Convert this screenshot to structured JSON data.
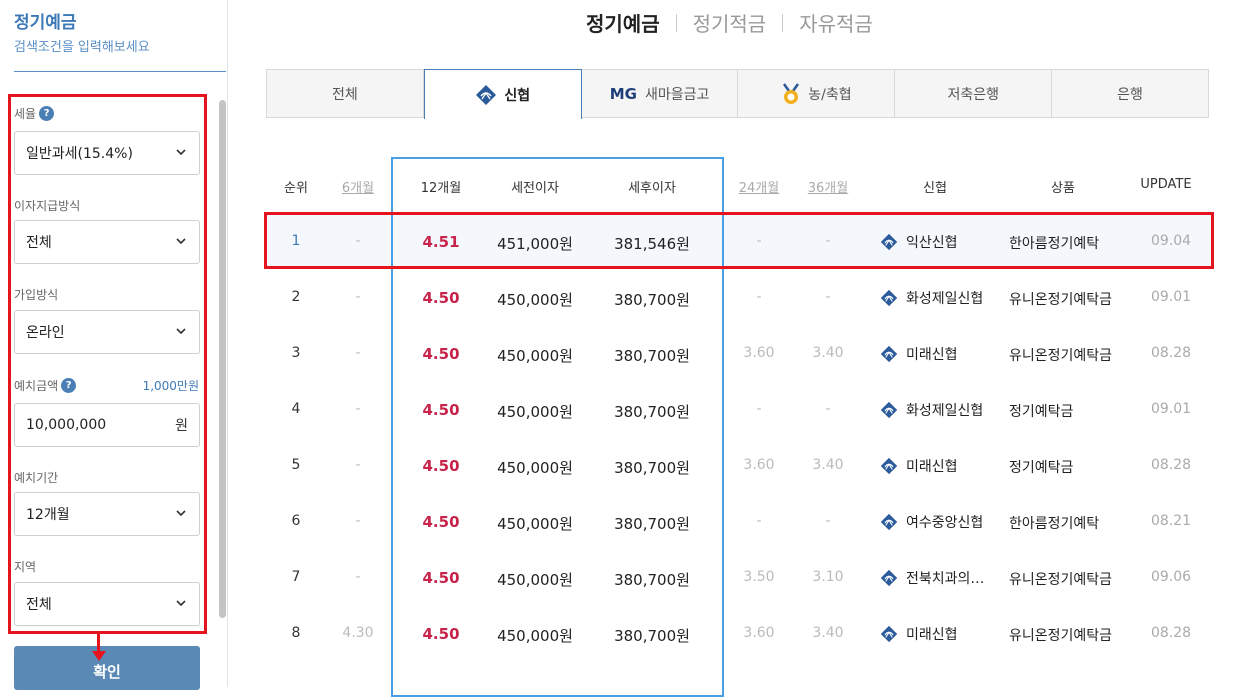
{
  "sidebar": {
    "title": "정기예금",
    "subtitle": "검색조건을 입력해보세요",
    "tax": {
      "label": "세율",
      "value": "일반과세(15.4%)"
    },
    "interest_method": {
      "label": "이자지급방식",
      "value": "전체"
    },
    "join_method": {
      "label": "가입방식",
      "value": "온라인"
    },
    "deposit_amount": {
      "label": "예치금액",
      "hint": "1,000만원",
      "value": "10,000,000",
      "unit": "원"
    },
    "period": {
      "label": "예치기간",
      "value": "12개월"
    },
    "region": {
      "label": "지역",
      "value": "전체"
    },
    "confirm_label": "확인"
  },
  "top_tabs": [
    "정기예금",
    "정기적금",
    "자유적금"
  ],
  "institution_tabs": [
    {
      "label": "전체",
      "icon": ""
    },
    {
      "label": "신협",
      "icon": "shinhyup-logo-icon"
    },
    {
      "label": "새마을금고",
      "icon": "mg-logo-icon",
      "prefix": "MG"
    },
    {
      "label": "농/축협",
      "icon": "nonghyup-logo-icon"
    },
    {
      "label": "저축은행",
      "icon": ""
    },
    {
      "label": "은행",
      "icon": ""
    }
  ],
  "table": {
    "headers": {
      "rank": "순위",
      "m6": "6개월",
      "m12": "12개월",
      "pretax": "세전이자",
      "aftertax": "세후이자",
      "m24": "24개월",
      "m36": "36개월",
      "bank": "신협",
      "product": "상품",
      "update": "UPDATE"
    },
    "rows": [
      {
        "rank": "1",
        "m6": "-",
        "m12": "4.51",
        "pretax": "451,000원",
        "aftertax": "381,546원",
        "m24": "-",
        "m36": "-",
        "bank": "익산신협",
        "product": "한아름정기예탁",
        "update": "09.04"
      },
      {
        "rank": "2",
        "m6": "-",
        "m12": "4.50",
        "pretax": "450,000원",
        "aftertax": "380,700원",
        "m24": "-",
        "m36": "-",
        "bank": "화성제일신협",
        "product": "유니온정기예탁금",
        "update": "09.01"
      },
      {
        "rank": "3",
        "m6": "-",
        "m12": "4.50",
        "pretax": "450,000원",
        "aftertax": "380,700원",
        "m24": "3.60",
        "m36": "3.40",
        "bank": "미래신협",
        "product": "유니온정기예탁금",
        "update": "08.28"
      },
      {
        "rank": "4",
        "m6": "-",
        "m12": "4.50",
        "pretax": "450,000원",
        "aftertax": "380,700원",
        "m24": "-",
        "m36": "-",
        "bank": "화성제일신협",
        "product": "정기예탁금",
        "update": "09.01"
      },
      {
        "rank": "5",
        "m6": "-",
        "m12": "4.50",
        "pretax": "450,000원",
        "aftertax": "380,700원",
        "m24": "3.60",
        "m36": "3.40",
        "bank": "미래신협",
        "product": "정기예탁금",
        "update": "08.28"
      },
      {
        "rank": "6",
        "m6": "-",
        "m12": "4.50",
        "pretax": "450,000원",
        "aftertax": "380,700원",
        "m24": "-",
        "m36": "-",
        "bank": "여수중앙신협",
        "product": "한아름정기예탁",
        "update": "08.21"
      },
      {
        "rank": "7",
        "m6": "-",
        "m12": "4.50",
        "pretax": "450,000원",
        "aftertax": "380,700원",
        "m24": "3.50",
        "m36": "3.10",
        "bank": "전북치과의…",
        "product": "유니온정기예탁금",
        "update": "09.06"
      },
      {
        "rank": "8",
        "m6": "4.30",
        "m12": "4.50",
        "pretax": "450,000원",
        "aftertax": "380,700원",
        "m24": "3.60",
        "m36": "3.40",
        "bank": "미래신협",
        "product": "유니온정기예탁금",
        "update": "08.28"
      }
    ]
  }
}
